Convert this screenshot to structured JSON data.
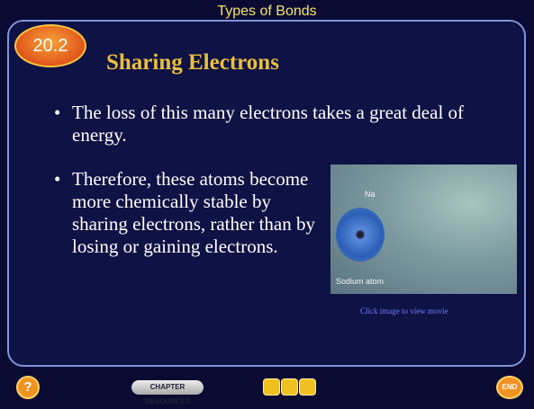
{
  "header": {
    "title": "Types of Bonds",
    "section_number": "20.2"
  },
  "slide": {
    "title": "Sharing Electrons",
    "bullets": [
      "The loss of this many electrons takes a great deal of energy.",
      "Therefore, these atoms become more chemically stable by sharing electrons, rather than by losing or gaining electrons."
    ],
    "image": {
      "labels": [
        "Na",
        "Sodium atom"
      ],
      "caption": "Click image to view movie"
    }
  },
  "footer": {
    "help": "?",
    "chapter_resources": "CHAPTER RESOURCES",
    "end": "END"
  }
}
